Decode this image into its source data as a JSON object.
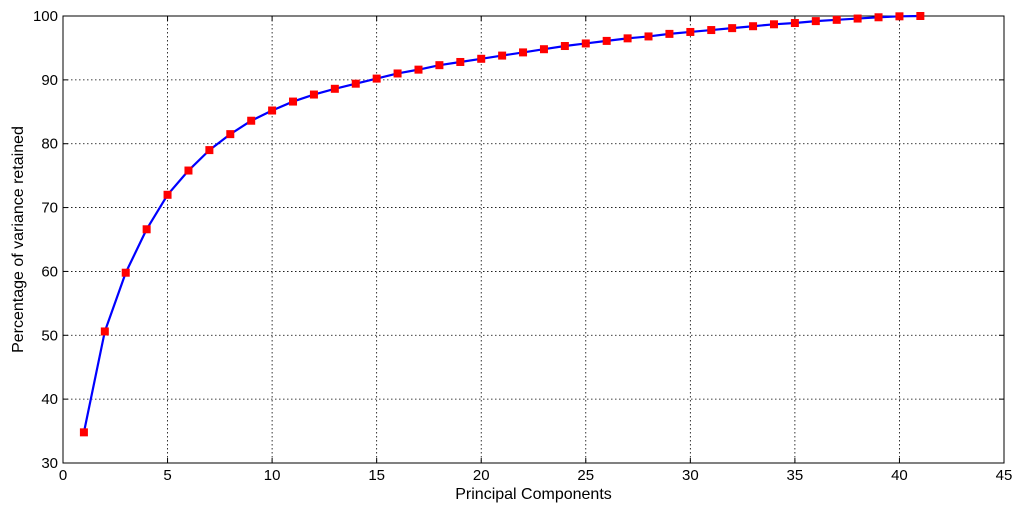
{
  "chart_data": {
    "type": "line",
    "title": "",
    "xlabel": "Principal Components",
    "ylabel": "Percentage of  variance retained",
    "xlim": [
      0,
      45
    ],
    "ylim": [
      30,
      100
    ],
    "xticks": [
      0,
      5,
      10,
      15,
      20,
      25,
      30,
      35,
      40,
      45
    ],
    "yticks": [
      30,
      40,
      50,
      60,
      70,
      80,
      90,
      100
    ],
    "grid": true,
    "legend": "none",
    "line_color": "#0000ff",
    "marker_color": "#ff0000",
    "marker": "square",
    "series": [
      {
        "x": [
          1,
          2,
          3,
          4,
          5,
          6,
          7,
          8,
          9,
          10,
          11,
          12,
          13,
          14,
          15,
          16,
          17,
          18,
          19,
          20,
          21,
          22,
          23,
          24,
          25,
          26,
          27,
          28,
          29,
          30,
          31,
          32,
          33,
          34,
          35,
          36,
          37,
          38,
          39,
          40,
          41
        ],
        "values": [
          34.8,
          50.6,
          59.8,
          66.6,
          72.0,
          75.8,
          79.0,
          81.5,
          83.6,
          85.2,
          86.6,
          87.7,
          88.6,
          89.4,
          90.2,
          91.0,
          91.6,
          92.3,
          92.8,
          93.3,
          93.8,
          94.3,
          94.8,
          95.3,
          95.7,
          96.1,
          96.5,
          96.8,
          97.2,
          97.5,
          97.8,
          98.1,
          98.4,
          98.7,
          98.9,
          99.2,
          99.4,
          99.6,
          99.8,
          99.95,
          100.0
        ]
      }
    ]
  }
}
